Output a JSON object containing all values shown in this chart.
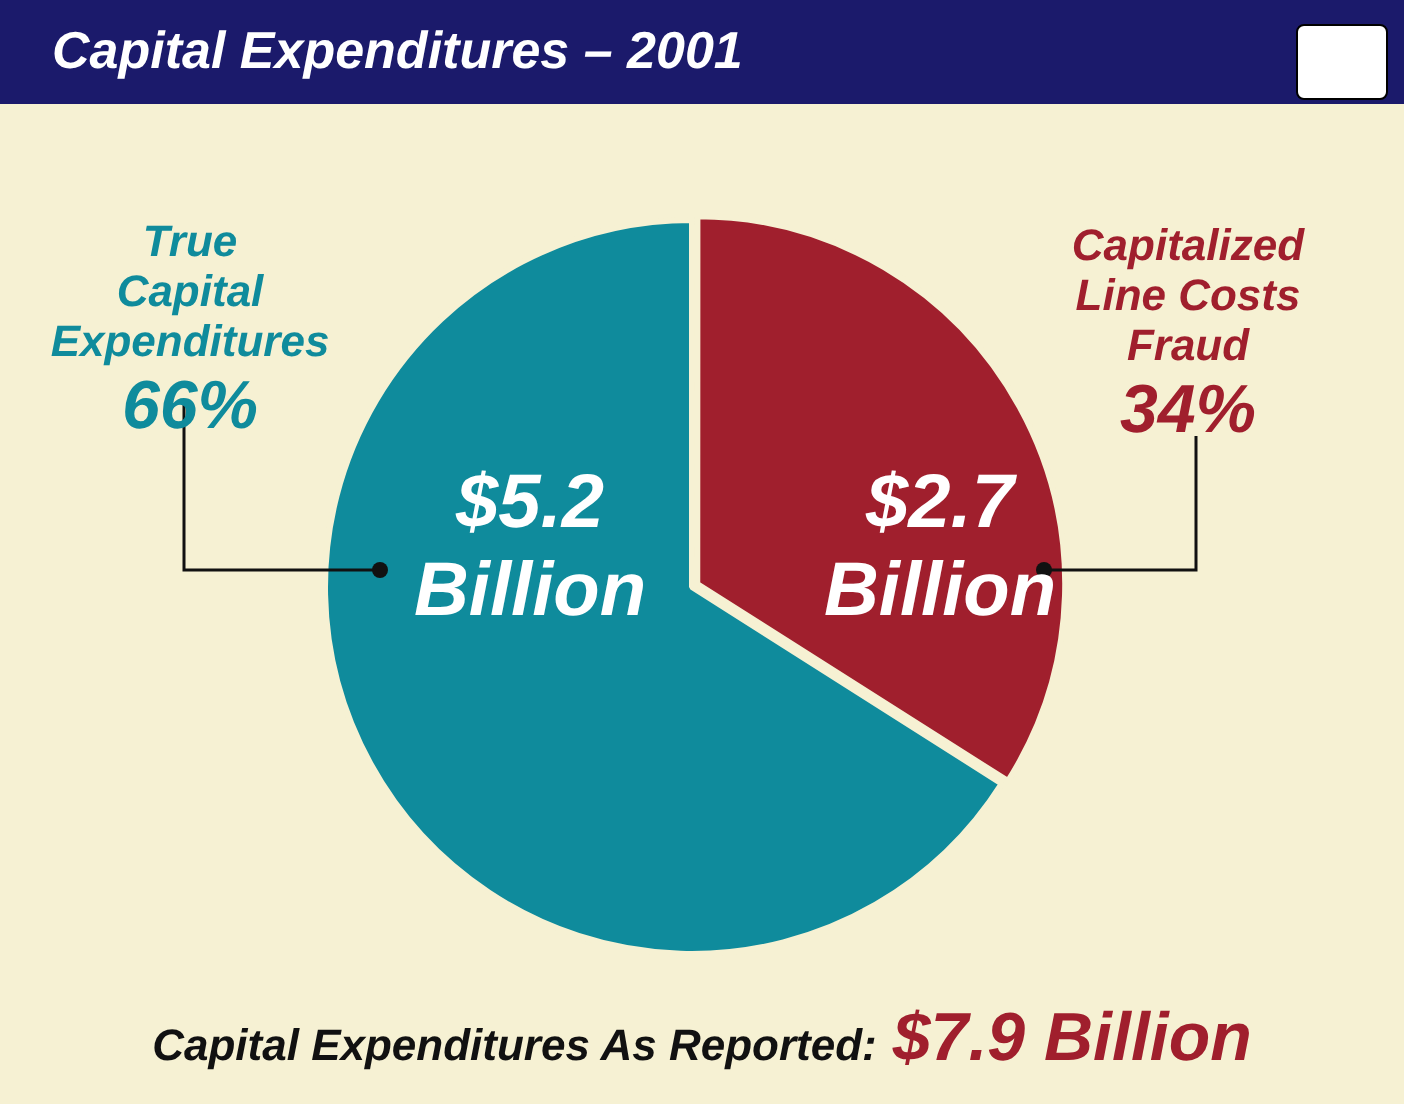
{
  "chart_data": {
    "type": "pie",
    "title": "Capital Expenditures – 2001",
    "categories": [
      "True Capital Expenditures",
      "Capitalized Line Costs Fraud"
    ],
    "values": [
      66,
      34
    ],
    "colors": [
      "#0f8b9c",
      "#a01f2d"
    ],
    "value_labels": [
      "66%",
      "34%"
    ],
    "annotations": [
      {
        "text": "$5.2 Billion",
        "x": "True Capital Expenditures"
      },
      {
        "text": "$2.7 Billion",
        "x": "Capitalized Line Costs Fraud"
      },
      "Capital Expenditures As Reported:",
      "$7.9 Billion"
    ],
    "legend": false
  }
}
